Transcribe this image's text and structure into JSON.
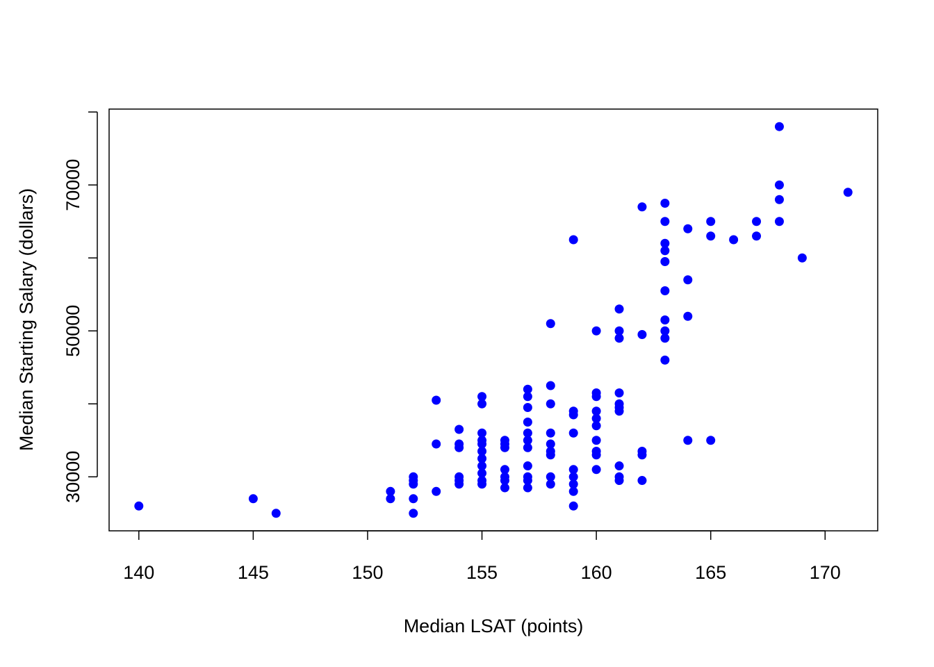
{
  "chart_data": {
    "type": "scatter",
    "title": "",
    "xlabel": "Median LSAT (points)",
    "ylabel": "Median Starting Salary (dollars)",
    "xlim": [
      138.7,
      172.3
    ],
    "ylim": [
      22600,
      80400
    ],
    "x_ticks": [
      140,
      145,
      150,
      155,
      160,
      165,
      170
    ],
    "x_tick_labels": [
      "140",
      "145",
      "150",
      "155",
      "160",
      "165",
      "170"
    ],
    "y_ticks": [
      30000,
      40000,
      50000,
      60000,
      70000,
      80000
    ],
    "y_tick_labels": [
      "30000",
      "",
      "50000",
      "",
      "70000",
      ""
    ],
    "grid": false,
    "point_color": "#0000ff",
    "series": [
      {
        "points": [
          [
            140,
            26000
          ],
          [
            145,
            27000
          ],
          [
            146,
            25000
          ],
          [
            151,
            28000
          ],
          [
            151,
            27000
          ],
          [
            152,
            30000
          ],
          [
            152,
            29500
          ],
          [
            152,
            29000
          ],
          [
            152,
            27000
          ],
          [
            152,
            25000
          ],
          [
            153,
            40500
          ],
          [
            153,
            34500
          ],
          [
            153,
            28000
          ],
          [
            154,
            36500
          ],
          [
            154,
            34500
          ],
          [
            154,
            34000
          ],
          [
            154,
            30000
          ],
          [
            154,
            29500
          ],
          [
            154,
            29000
          ],
          [
            155,
            41000
          ],
          [
            155,
            40000
          ],
          [
            155,
            36000
          ],
          [
            155,
            35000
          ],
          [
            155,
            34500
          ],
          [
            155,
            33500
          ],
          [
            155,
            32500
          ],
          [
            155,
            31500
          ],
          [
            155,
            30500
          ],
          [
            155,
            29500
          ],
          [
            155,
            29000
          ],
          [
            156,
            35000
          ],
          [
            156,
            34500
          ],
          [
            156,
            34000
          ],
          [
            156,
            31000
          ],
          [
            156,
            30000
          ],
          [
            156,
            29500
          ],
          [
            156,
            28500
          ],
          [
            157,
            42000
          ],
          [
            157,
            41000
          ],
          [
            157,
            39500
          ],
          [
            157,
            37500
          ],
          [
            157,
            36000
          ],
          [
            157,
            35000
          ],
          [
            157,
            34000
          ],
          [
            157,
            31500
          ],
          [
            157,
            30000
          ],
          [
            157,
            29500
          ],
          [
            157,
            28500
          ],
          [
            158,
            51000
          ],
          [
            158,
            42500
          ],
          [
            158,
            40000
          ],
          [
            158,
            36000
          ],
          [
            158,
            34500
          ],
          [
            158,
            33500
          ],
          [
            158,
            33000
          ],
          [
            158,
            30000
          ],
          [
            158,
            29000
          ],
          [
            159,
            62500
          ],
          [
            159,
            39000
          ],
          [
            159,
            38500
          ],
          [
            159,
            36000
          ],
          [
            159,
            31000
          ],
          [
            159,
            30000
          ],
          [
            159,
            29000
          ],
          [
            159,
            28000
          ],
          [
            159,
            26000
          ],
          [
            160,
            50000
          ],
          [
            160,
            41500
          ],
          [
            160,
            41000
          ],
          [
            160,
            39000
          ],
          [
            160,
            38000
          ],
          [
            160,
            37000
          ],
          [
            160,
            35000
          ],
          [
            160,
            33500
          ],
          [
            160,
            33000
          ],
          [
            160,
            31000
          ],
          [
            161,
            53000
          ],
          [
            161,
            50000
          ],
          [
            161,
            49000
          ],
          [
            161,
            41500
          ],
          [
            161,
            40000
          ],
          [
            161,
            39500
          ],
          [
            161,
            39000
          ],
          [
            161,
            31500
          ],
          [
            161,
            30000
          ],
          [
            161,
            29500
          ],
          [
            162,
            67000
          ],
          [
            162,
            49500
          ],
          [
            162,
            33500
          ],
          [
            162,
            33000
          ],
          [
            162,
            29500
          ],
          [
            163,
            67500
          ],
          [
            163,
            65000
          ],
          [
            163,
            62000
          ],
          [
            163,
            61000
          ],
          [
            163,
            59500
          ],
          [
            163,
            55500
          ],
          [
            163,
            51500
          ],
          [
            163,
            50000
          ],
          [
            163,
            49000
          ],
          [
            163,
            46000
          ],
          [
            164,
            64000
          ],
          [
            164,
            57000
          ],
          [
            164,
            52000
          ],
          [
            164,
            35000
          ],
          [
            165,
            65000
          ],
          [
            165,
            63000
          ],
          [
            165,
            35000
          ],
          [
            166,
            62500
          ],
          [
            167,
            65000
          ],
          [
            167,
            63000
          ],
          [
            168,
            78000
          ],
          [
            168,
            70000
          ],
          [
            168,
            68000
          ],
          [
            168,
            65000
          ],
          [
            169,
            60000
          ],
          [
            171,
            69000
          ]
        ]
      }
    ]
  }
}
